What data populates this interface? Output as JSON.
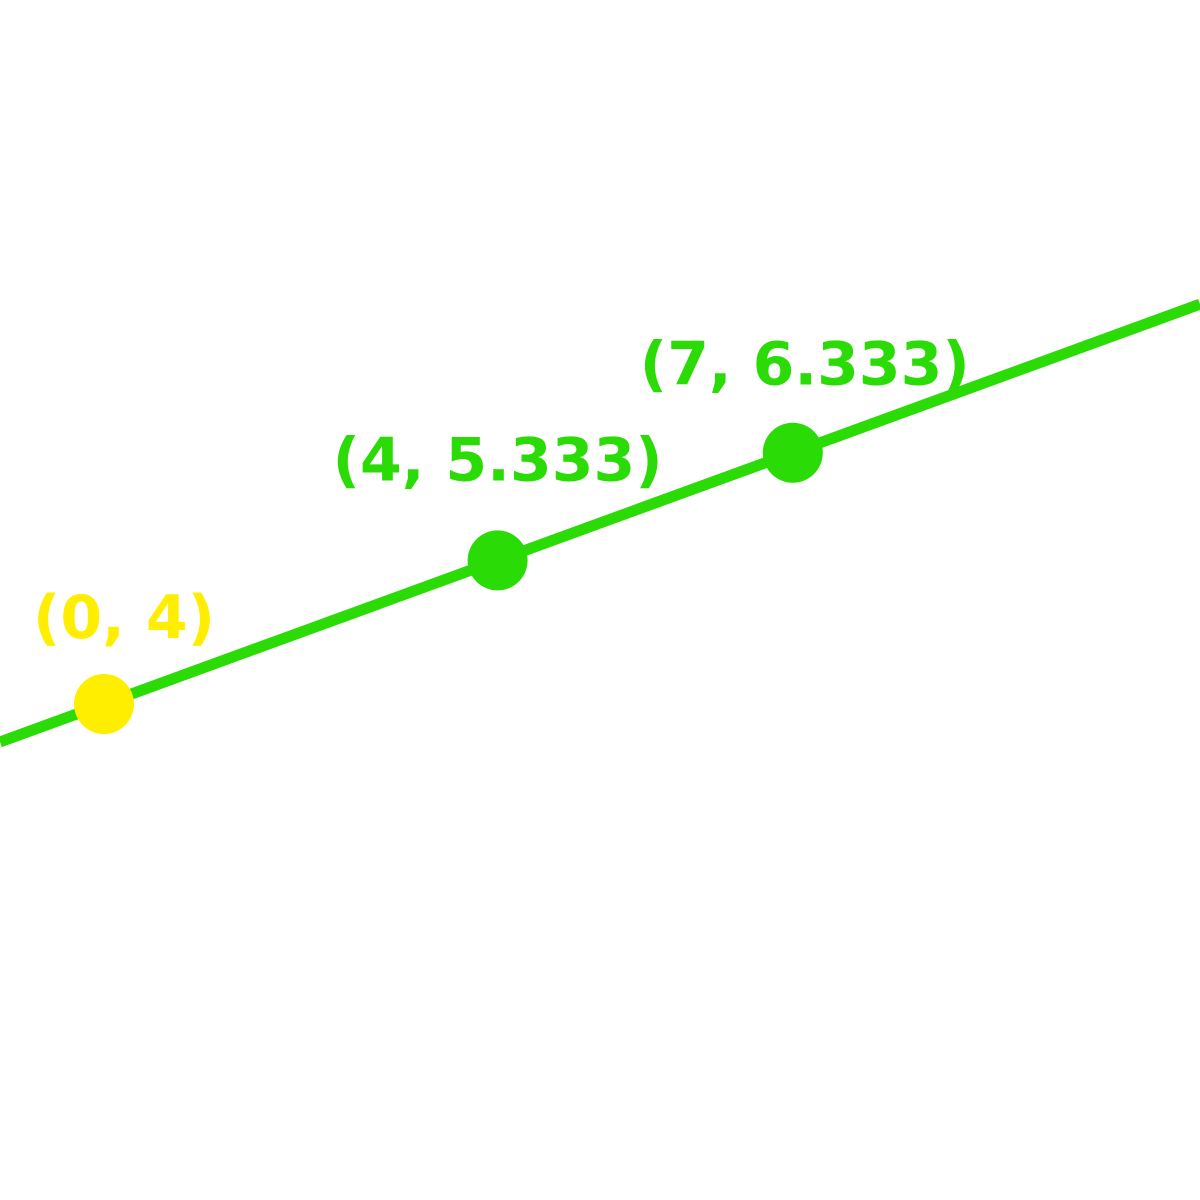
{
  "chart_data": {
    "type": "line",
    "title": "",
    "xlabel": "",
    "ylabel": "",
    "grid": false,
    "line": {
      "slope": 0.3333,
      "intercept": 4,
      "color": "#2adb05"
    },
    "points": [
      {
        "x": 0,
        "y": 4,
        "label": "(0, 4)",
        "color": "#ffee00"
      },
      {
        "x": 4,
        "y": 5.333,
        "label": "(4, 5.333)",
        "color": "#2adb05"
      },
      {
        "x": 7,
        "y": 6.333,
        "label": "(7, 6.333)",
        "color": "#2adb05"
      }
    ]
  }
}
